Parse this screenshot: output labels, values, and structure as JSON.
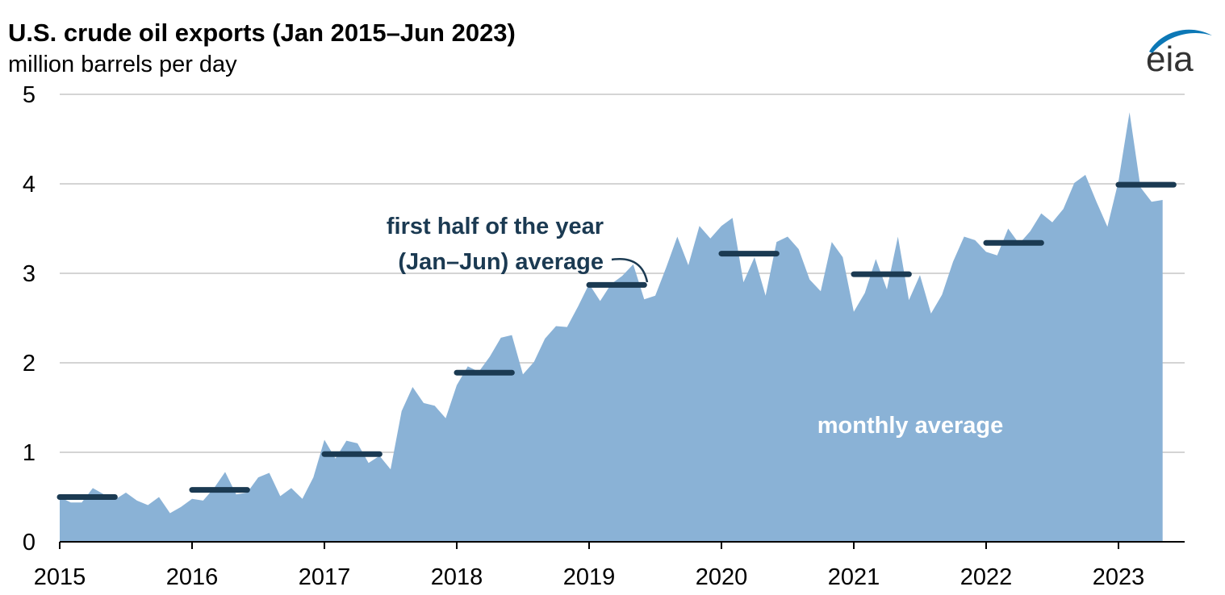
{
  "chart_data": {
    "type": "area",
    "title": "U.S. crude oil exports (Jan 2015–Jun 2023)",
    "subtitle": "million barrels per day",
    "ylim": [
      0,
      5
    ],
    "xlim": [
      2015,
      2023.5
    ],
    "y_ticks": [
      "0",
      "1",
      "2",
      "3",
      "4",
      "5"
    ],
    "x_ticks": [
      "2015",
      "2016",
      "2017",
      "2018",
      "2019",
      "2020",
      "2021",
      "2022",
      "2023"
    ],
    "grid": true,
    "colors": {
      "area": "#8ab2d6",
      "avg_line": "#1b3a52",
      "monthly_label": "#ffffff"
    },
    "logo": "eia",
    "annotations": {
      "half_year_label": [
        "first half of the year",
        "(Jan–Jun) average"
      ],
      "monthly_label": "monthly average"
    },
    "series": [
      {
        "name": "monthly average",
        "start": "2015-01",
        "values": [
          0.5,
          0.44,
          0.44,
          0.6,
          0.53,
          0.47,
          0.55,
          0.46,
          0.41,
          0.5,
          0.32,
          0.39,
          0.48,
          0.46,
          0.6,
          0.78,
          0.53,
          0.55,
          0.72,
          0.77,
          0.51,
          0.6,
          0.48,
          0.72,
          1.14,
          0.93,
          1.13,
          1.1,
          0.88,
          0.96,
          0.81,
          1.46,
          1.73,
          1.55,
          1.52,
          1.38,
          1.75,
          1.96,
          1.9,
          2.07,
          2.28,
          2.31,
          1.87,
          2.01,
          2.27,
          2.41,
          2.4,
          2.63,
          2.88,
          2.69,
          2.88,
          2.97,
          3.1,
          2.71,
          2.75,
          3.07,
          3.41,
          3.09,
          3.53,
          3.39,
          3.53,
          3.62,
          2.9,
          3.18,
          2.75,
          3.35,
          3.41,
          3.27,
          2.93,
          2.8,
          3.35,
          3.18,
          2.57,
          2.78,
          3.16,
          2.82,
          3.41,
          2.7,
          2.98,
          2.55,
          2.76,
          3.13,
          3.41,
          3.37,
          3.24,
          3.2,
          3.5,
          3.33,
          3.47,
          3.67,
          3.57,
          3.72,
          4.01,
          4.1,
          3.8,
          3.52,
          4.03,
          4.8,
          3.96,
          3.8,
          3.82
        ]
      },
      {
        "name": "first half of the year (Jan–Jun) average",
        "x": [
          2015,
          2016,
          2017,
          2018,
          2019,
          2020,
          2021,
          2022,
          2023
        ],
        "values": [
          0.5,
          0.58,
          0.98,
          1.89,
          2.87,
          3.22,
          2.99,
          3.34,
          3.99
        ]
      }
    ]
  }
}
